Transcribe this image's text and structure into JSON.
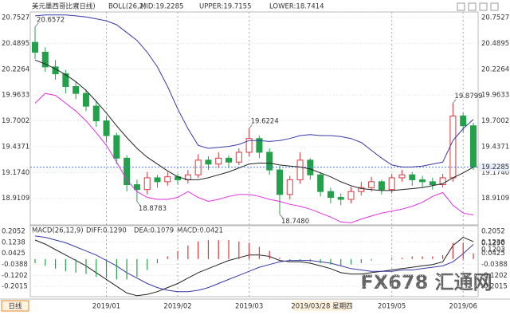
{
  "chart_data": [
    {
      "type": "candlestick",
      "title": "美元墨西哥比索",
      "subtitle": "(日线)",
      "indicator": "BOLL(26,2)",
      "indicator_values": [
        "MID:19.2285",
        "UPPER:19.7155",
        "LOWER:18.7414"
      ],
      "categories": [
        null,
        null,
        null,
        null,
        null,
        null,
        null,
        "2019/01",
        null,
        null,
        null,
        null,
        null,
        null,
        "2019/02",
        null,
        null,
        null,
        null,
        null,
        null,
        "2019/03",
        null,
        null,
        null,
        null,
        null,
        null,
        null,
        null,
        null,
        null,
        null,
        null,
        null,
        "2019/05",
        null,
        null,
        null,
        null,
        null,
        null,
        "2019/06",
        null
      ],
      "open": [
        20.5,
        20.4,
        20.25,
        20.18,
        20.05,
        19.98,
        19.85,
        19.7,
        19.55,
        19.32,
        19.05,
        19.0,
        19.12,
        19.08,
        19.13,
        19.1,
        19.15,
        19.3,
        19.26,
        19.32,
        19.28,
        19.38,
        19.52,
        19.38,
        19.2,
        18.95,
        19.1,
        19.3,
        19.15,
        18.98,
        18.92,
        18.9,
        18.98,
        19.02,
        19.08,
        19.0,
        19.12,
        19.15,
        19.1,
        19.08,
        19.05,
        19.12,
        19.75,
        19.65
      ],
      "high": [
        20.6572,
        20.45,
        20.32,
        20.22,
        20.1,
        20.02,
        19.9,
        19.75,
        19.58,
        19.35,
        19.1,
        19.18,
        19.15,
        19.18,
        19.16,
        19.2,
        19.36,
        19.34,
        19.38,
        19.35,
        19.42,
        19.6224,
        19.55,
        19.42,
        19.24,
        19.14,
        19.38,
        19.32,
        19.18,
        19.02,
        18.96,
        19.03,
        19.08,
        19.13,
        19.1,
        19.16,
        19.2,
        19.18,
        19.14,
        19.12,
        19.16,
        19.8799,
        19.78,
        19.68
      ],
      "low": [
        20.33,
        20.2,
        20.12,
        19.98,
        19.92,
        19.8,
        19.64,
        19.48,
        19.26,
        18.98,
        18.8783,
        18.95,
        19.02,
        19.04,
        19.05,
        19.06,
        19.12,
        19.2,
        19.22,
        19.22,
        19.25,
        19.34,
        19.32,
        19.15,
        18.748,
        18.9,
        19.06,
        19.1,
        18.93,
        18.86,
        18.84,
        18.86,
        18.94,
        18.98,
        18.95,
        18.96,
        19.08,
        19.04,
        19.02,
        19.0,
        19.02,
        19.08,
        19.58,
        19.2
      ],
      "close": [
        20.4,
        20.25,
        20.18,
        20.05,
        19.98,
        19.85,
        19.7,
        19.55,
        19.32,
        19.05,
        19.0,
        19.12,
        19.08,
        19.13,
        19.1,
        19.15,
        19.3,
        19.26,
        19.32,
        19.28,
        19.38,
        19.52,
        19.38,
        19.2,
        18.95,
        19.1,
        19.3,
        19.15,
        18.98,
        18.92,
        18.9,
        18.98,
        19.02,
        19.08,
        19.0,
        19.12,
        19.15,
        19.1,
        19.08,
        19.05,
        19.12,
        19.75,
        19.65,
        19.23
      ],
      "high_labels": [
        "20.6572",
        null,
        null,
        null,
        null,
        null,
        null,
        null,
        null,
        null,
        null,
        null,
        null,
        null,
        null,
        null,
        null,
        null,
        null,
        null,
        null,
        "19.6224",
        null,
        null,
        null,
        null,
        null,
        null,
        null,
        null,
        null,
        null,
        null,
        null,
        null,
        null,
        null,
        null,
        null,
        null,
        null,
        "19.8799",
        null,
        null
      ],
      "low_labels": [
        null,
        null,
        null,
        null,
        null,
        null,
        null,
        null,
        null,
        null,
        "18.8783",
        null,
        null,
        null,
        null,
        null,
        null,
        null,
        null,
        null,
        null,
        null,
        null,
        null,
        "18.7480",
        null,
        null,
        null,
        null,
        null,
        null,
        null,
        null,
        null,
        null,
        null,
        null,
        null,
        null,
        null,
        null,
        null,
        null,
        null
      ],
      "up_color": "#d9363e",
      "down_color": "#23a04a",
      "series": [
        {
          "name": "MID",
          "color": "#222222",
          "values": [
            20.32,
            20.28,
            20.23,
            20.17,
            20.1,
            20.01,
            19.9,
            19.78,
            19.65,
            19.53,
            19.42,
            19.33,
            19.26,
            19.19,
            19.13,
            19.1,
            19.1,
            19.12,
            19.15,
            19.18,
            19.22,
            19.26,
            19.27,
            19.27,
            19.25,
            19.24,
            19.23,
            19.21,
            19.17,
            19.13,
            19.08,
            19.04,
            19.01,
            19.0,
            18.99,
            18.99,
            19.0,
            19.01,
            19.02,
            19.04,
            19.06,
            19.12,
            19.17,
            19.2285
          ]
        },
        {
          "name": "UPPER",
          "color": "#3838a8",
          "values": [
            20.77,
            20.78,
            20.78,
            20.78,
            20.77,
            20.76,
            20.74,
            20.72,
            20.68,
            20.6,
            20.52,
            20.4,
            20.25,
            20.05,
            19.82,
            19.62,
            19.45,
            19.42,
            19.43,
            19.44,
            19.46,
            19.5,
            19.5,
            19.49,
            19.5,
            19.52,
            19.55,
            19.56,
            19.55,
            19.55,
            19.54,
            19.52,
            19.48,
            19.4,
            19.32,
            19.25,
            19.23,
            19.23,
            19.24,
            19.26,
            19.28,
            19.5,
            19.62,
            19.7155
          ]
        },
        {
          "name": "LOWER",
          "color": "#e030e0",
          "values": [
            19.88,
            19.98,
            19.96,
            19.88,
            19.8,
            19.7,
            19.58,
            19.45,
            19.28,
            19.1,
            18.98,
            18.92,
            18.9,
            18.9,
            18.92,
            18.98,
            18.92,
            18.88,
            18.9,
            18.93,
            18.95,
            18.95,
            18.93,
            18.9,
            18.88,
            18.85,
            18.83,
            18.8,
            18.76,
            18.72,
            18.67,
            18.66,
            18.7,
            18.73,
            18.76,
            18.78,
            18.8,
            18.83,
            18.87,
            18.93,
            18.97,
            18.84,
            18.76,
            18.7414
          ]
        }
      ],
      "last_price": {
        "value": 19.2285,
        "label": "19.2285"
      },
      "ylim": [
        18.64,
        20.81
      ],
      "yticks": [
        20.7527,
        20.4895,
        20.2264,
        19.9633,
        {
          "value": 19.7002,
          "label": "19.7002"
        },
        19.4371,
        {
          "value": 19.174,
          "label": "19.1740"
        },
        18.9109
      ],
      "grid": true
    },
    {
      "type": "macd",
      "title": "MACD(26,12,9)",
      "indicator_values": [
        "DIFF:0.1290",
        "DEA:0.1079",
        "MACD:0.0421"
      ],
      "right_labels": [
        "0.1290",
        "0.1203"
      ],
      "up_color": "#d9363e",
      "down_color": "#23a04a",
      "series": [
        {
          "name": "DIFF",
          "color": "#222222",
          "values": [
            0.14,
            0.11,
            0.07,
            0.03,
            -0.01,
            -0.05,
            -0.1,
            -0.15,
            -0.2,
            -0.25,
            -0.27,
            -0.26,
            -0.24,
            -0.21,
            -0.18,
            -0.14,
            -0.1,
            -0.07,
            -0.04,
            -0.01,
            0.01,
            0.03,
            0.03,
            0.02,
            -0.01,
            -0.02,
            -0.02,
            -0.03,
            -0.05,
            -0.07,
            -0.1,
            -0.11,
            -0.11,
            -0.1,
            -0.09,
            -0.08,
            -0.07,
            -0.06,
            -0.05,
            -0.04,
            -0.02,
            0.1,
            0.16,
            0.129
          ]
        },
        {
          "name": "DEA",
          "color": "#3838a8",
          "values": [
            0.17,
            0.16,
            0.14,
            0.12,
            0.09,
            0.06,
            0.03,
            -0.01,
            -0.05,
            -0.1,
            -0.14,
            -0.18,
            -0.21,
            -0.23,
            -0.24,
            -0.24,
            -0.23,
            -0.21,
            -0.18,
            -0.15,
            -0.12,
            -0.09,
            -0.06,
            -0.04,
            -0.02,
            -0.01,
            -0.01,
            -0.01,
            -0.02,
            -0.03,
            -0.05,
            -0.07,
            -0.08,
            -0.09,
            -0.09,
            -0.09,
            -0.08,
            -0.08,
            -0.07,
            -0.06,
            -0.05,
            -0.02,
            0.04,
            0.1079
          ]
        },
        {
          "name": "MACD",
          "color": "#e030e0",
          "histogram": true,
          "values": [
            -0.03,
            -0.05,
            -0.07,
            -0.09,
            -0.1,
            -0.11,
            -0.13,
            -0.14,
            -0.15,
            -0.15,
            -0.13,
            -0.08,
            -0.03,
            0.02,
            0.06,
            0.1,
            0.13,
            0.14,
            0.14,
            0.14,
            0.13,
            0.12,
            0.09,
            0.06,
            0.01,
            -0.01,
            -0.01,
            -0.02,
            -0.03,
            -0.04,
            -0.05,
            -0.04,
            -0.03,
            -0.01,
            0,
            0.01,
            0.01,
            0.02,
            0.02,
            0.02,
            0.03,
            0.12,
            0.12,
            0.0421
          ]
        }
      ],
      "ylim": [
        -0.277,
        0.246
      ],
      "yticks": [
        0.2052,
        0.1238,
        0.0425,
        -0.0388,
        -0.1202,
        -0.2015
      ],
      "grid": true
    }
  ],
  "period_button": "日线",
  "cursor_label": "2019/03/28 星期四",
  "watermark": "FX678 汇通网"
}
